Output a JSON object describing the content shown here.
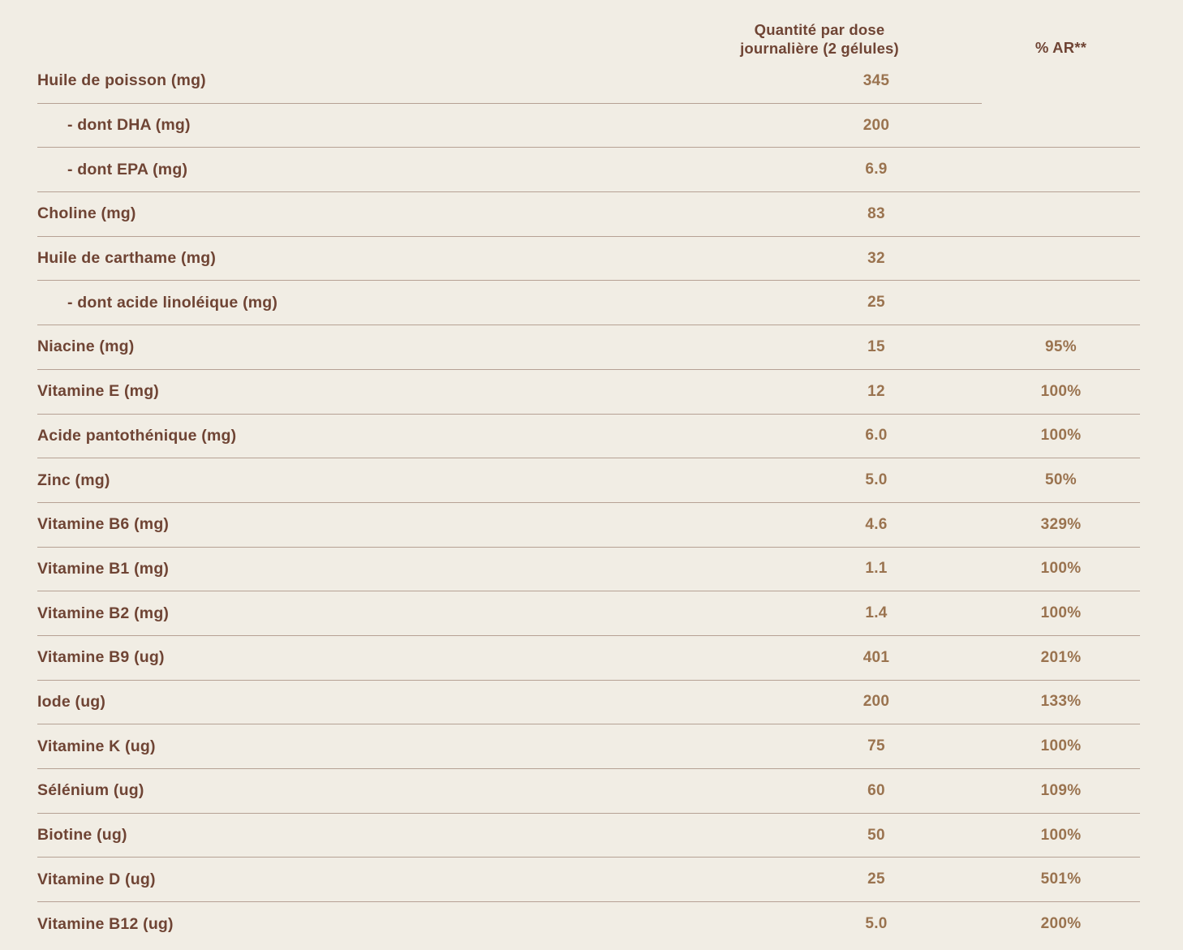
{
  "colors": {
    "background": "#f1ede4",
    "label_brown": "#6f4434",
    "value_tan": "#9a734f"
  },
  "table": {
    "header": {
      "amount_label_line1": "Quantité par dose",
      "amount_label_line2": "journalière (2 gélules)",
      "ar_label": "% AR**"
    },
    "rows": [
      {
        "label": "Huile de poisson (mg)",
        "sub_item": false,
        "amount": "345",
        "ar": ""
      },
      {
        "label": "- dont DHA (mg)",
        "sub_item": true,
        "amount": "200",
        "ar": ""
      },
      {
        "label": "- dont EPA (mg)",
        "sub_item": true,
        "amount": "6.9",
        "ar": ""
      },
      {
        "label": "Choline (mg)",
        "sub_item": false,
        "amount": "83",
        "ar": ""
      },
      {
        "label": "Huile de carthame (mg)",
        "sub_item": false,
        "amount": "32",
        "ar": ""
      },
      {
        "label": "- dont acide linoléique (mg)",
        "sub_item": true,
        "amount": "25",
        "ar": ""
      },
      {
        "label": "Niacine (mg)",
        "sub_item": false,
        "amount": "15",
        "ar": "95%"
      },
      {
        "label": "Vitamine E (mg)",
        "sub_item": false,
        "amount": "12",
        "ar": "100%"
      },
      {
        "label": "Acide pantothénique (mg)",
        "sub_item": false,
        "amount": "6.0",
        "ar": "100%"
      },
      {
        "label": "Zinc (mg)",
        "sub_item": false,
        "amount": "5.0",
        "ar": "50%"
      },
      {
        "label": "Vitamine B6 (mg)",
        "sub_item": false,
        "amount": "4.6",
        "ar": "329%"
      },
      {
        "label": "Vitamine B1 (mg)",
        "sub_item": false,
        "amount": "1.1",
        "ar": "100%"
      },
      {
        "label": "Vitamine B2 (mg)",
        "sub_item": false,
        "amount": "1.4",
        "ar": "100%"
      },
      {
        "label": "Vitamine B9 (ug)",
        "sub_item": false,
        "amount": "401",
        "ar": "201%"
      },
      {
        "label": "Iode (ug)",
        "sub_item": false,
        "amount": "200",
        "ar": "133%"
      },
      {
        "label": "Vitamine K (ug)",
        "sub_item": false,
        "amount": "75",
        "ar": "100%"
      },
      {
        "label": "Sélénium (ug)",
        "sub_item": false,
        "amount": "60",
        "ar": "109%"
      },
      {
        "label": "Biotine (ug)",
        "sub_item": false,
        "amount": "50",
        "ar": "100%"
      },
      {
        "label": "Vitamine D (ug)",
        "sub_item": false,
        "amount": "25",
        "ar": "501%"
      },
      {
        "label": "Vitamine B12 (ug)",
        "sub_item": false,
        "amount": "5.0",
        "ar": "200%"
      }
    ]
  }
}
